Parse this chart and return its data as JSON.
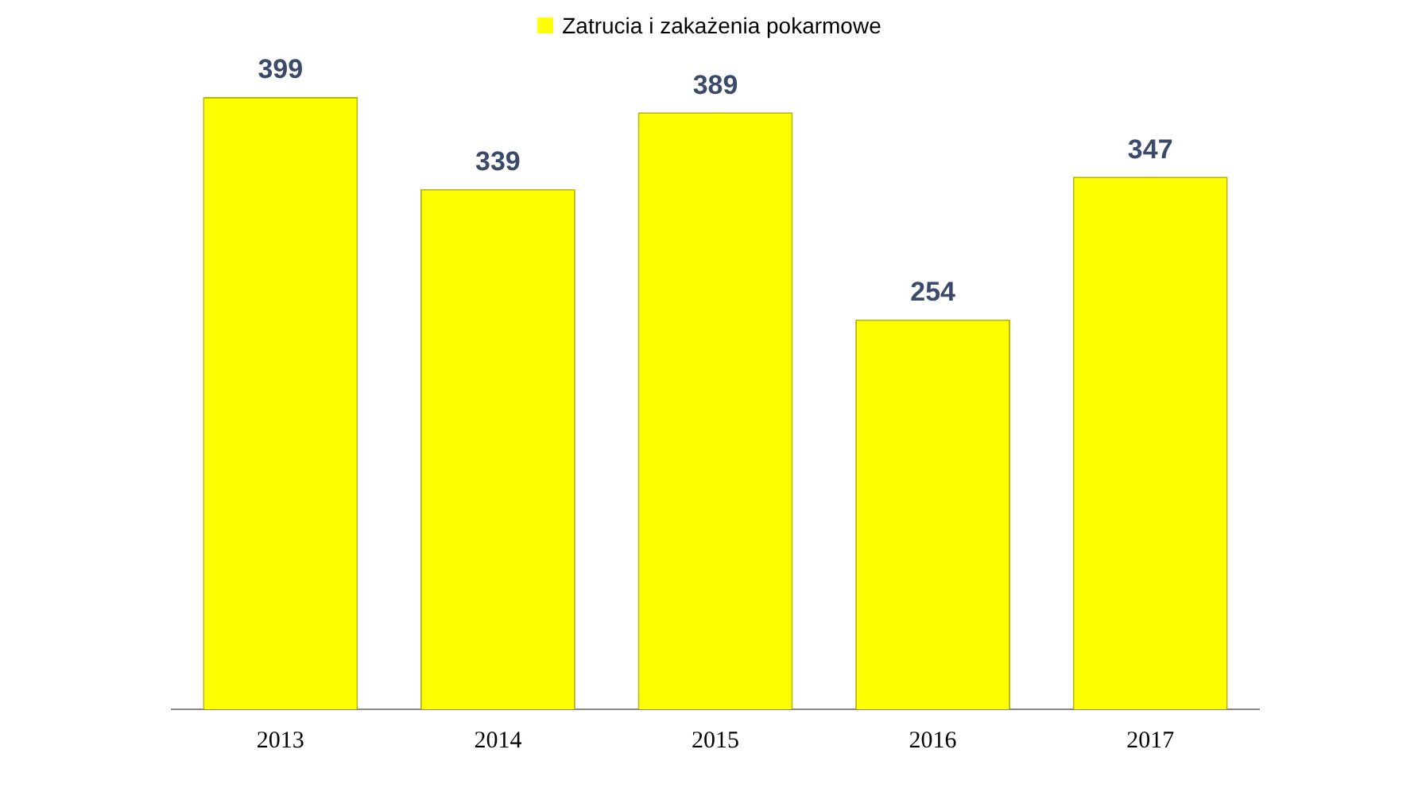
{
  "chart_data": {
    "type": "bar",
    "categories": [
      "2013",
      "2014",
      "2015",
      "2016",
      "2017"
    ],
    "series": [
      {
        "name": "Zatrucia i zakażenia pokarmowe",
        "color": "#ffff00",
        "values": [
          399,
          339,
          389,
          254,
          347
        ]
      }
    ],
    "data_labels": true,
    "legend": "top",
    "grid": false,
    "tick_labels": "x"
  }
}
